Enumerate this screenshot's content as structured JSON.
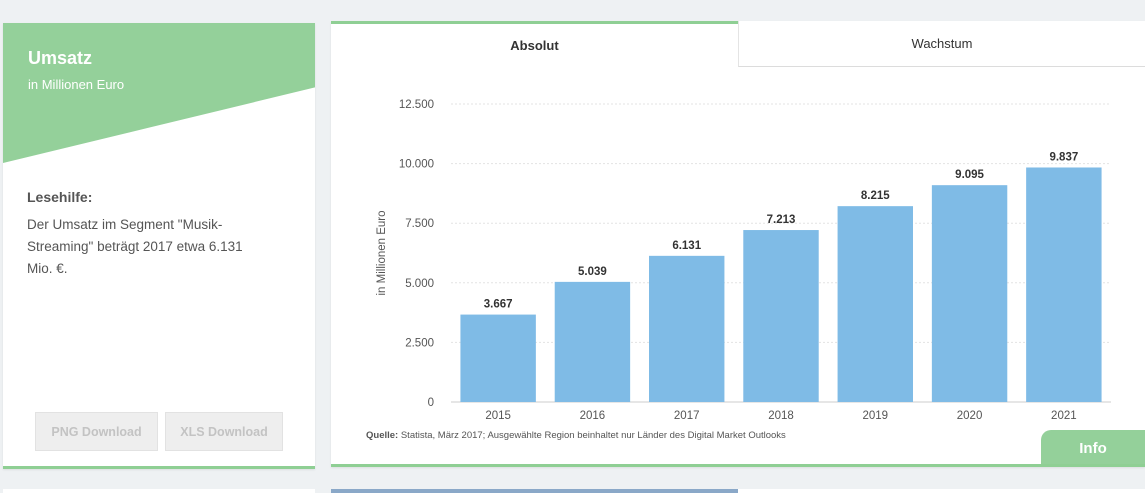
{
  "left_panel": {
    "title": "Umsatz",
    "subtitle": "in Millionen Euro",
    "lesehilfe_heading": "Lesehilfe:",
    "lesehilfe_text": "Der Umsatz im Segment \"Musik-Streaming\" beträgt 2017 etwa 6.131 Mio. €.",
    "png_button": "PNG Download",
    "xls_button": "XLS Download"
  },
  "tabs": {
    "absolut": "Absolut",
    "wachstum": "Wachstum"
  },
  "source": {
    "label": "Quelle:",
    "text": " Statista, März 2017; Ausgewählte Region beinhaltet nur Länder des Digital Market Outlooks"
  },
  "info_button": "Info",
  "colors": {
    "bar": "#7fbbe6",
    "accent_green": "#94d09a"
  },
  "chart_data": {
    "type": "bar",
    "categories": [
      "2015",
      "2016",
      "2017",
      "2018",
      "2019",
      "2020",
      "2021"
    ],
    "values": [
      3667,
      5039,
      6131,
      7213,
      8215,
      9095,
      9837
    ],
    "value_labels": [
      "3.667",
      "5.039",
      "6.131",
      "7.213",
      "8.215",
      "9.095",
      "9.837"
    ],
    "ylabel": "in Millionen Euro",
    "ylim": [
      0,
      12500
    ],
    "yticks": [
      0,
      2500,
      5000,
      7500,
      10000,
      12500
    ],
    "ytick_labels": [
      "0",
      "2.500",
      "5.000",
      "7.500",
      "10.000",
      "12.500"
    ],
    "grid": true
  }
}
